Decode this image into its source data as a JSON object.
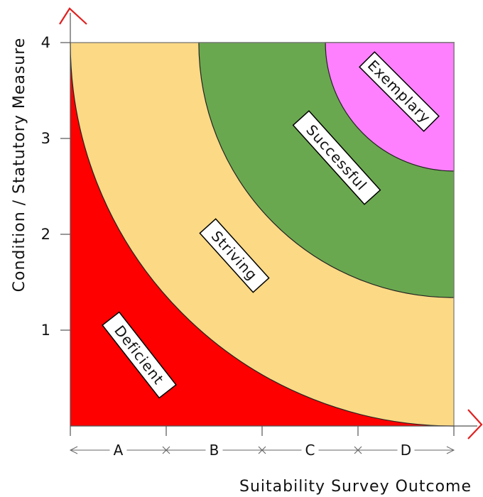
{
  "chart_data": {
    "type": "area",
    "xlabel": "Suitability Survey Outcome",
    "ylabel": "Condition / Statutory Measure",
    "ylim": [
      0,
      4
    ],
    "y_ticks": [
      "1",
      "2",
      "3",
      "4"
    ],
    "x_categories": [
      "A",
      "B",
      "C",
      "D"
    ],
    "regions": [
      {
        "name": "Deficient",
        "color": "#ff0000",
        "curve_k": 0
      },
      {
        "name": "Striving",
        "color": "#fbd985",
        "curve_k": 1
      },
      {
        "name": "Successful",
        "color": "#6aa84f",
        "curve_k": 2
      },
      {
        "name": "Exemplary",
        "color": "#ff80ff",
        "curve_k": 3
      }
    ],
    "boundaries": [
      {
        "description": "Deficient/Striving",
        "points": [
          [
            0,
            4
          ],
          [
            1,
            1.49
          ],
          [
            2,
            0.66
          ],
          [
            3,
            0.18
          ],
          [
            4,
            0
          ]
        ]
      },
      {
        "description": "Striving/Successful",
        "points": [
          [
            1.34,
            4
          ],
          [
            2,
            3.1
          ],
          [
            3,
            2.05
          ],
          [
            4,
            1.34
          ]
        ]
      },
      {
        "description": "Successful/Exemplary",
        "points": [
          [
            2.66,
            4
          ],
          [
            3,
            3.58
          ],
          [
            4,
            2.66
          ]
        ]
      }
    ],
    "grid": false,
    "legend": "none",
    "axis_arrow_color": "#e02020"
  }
}
